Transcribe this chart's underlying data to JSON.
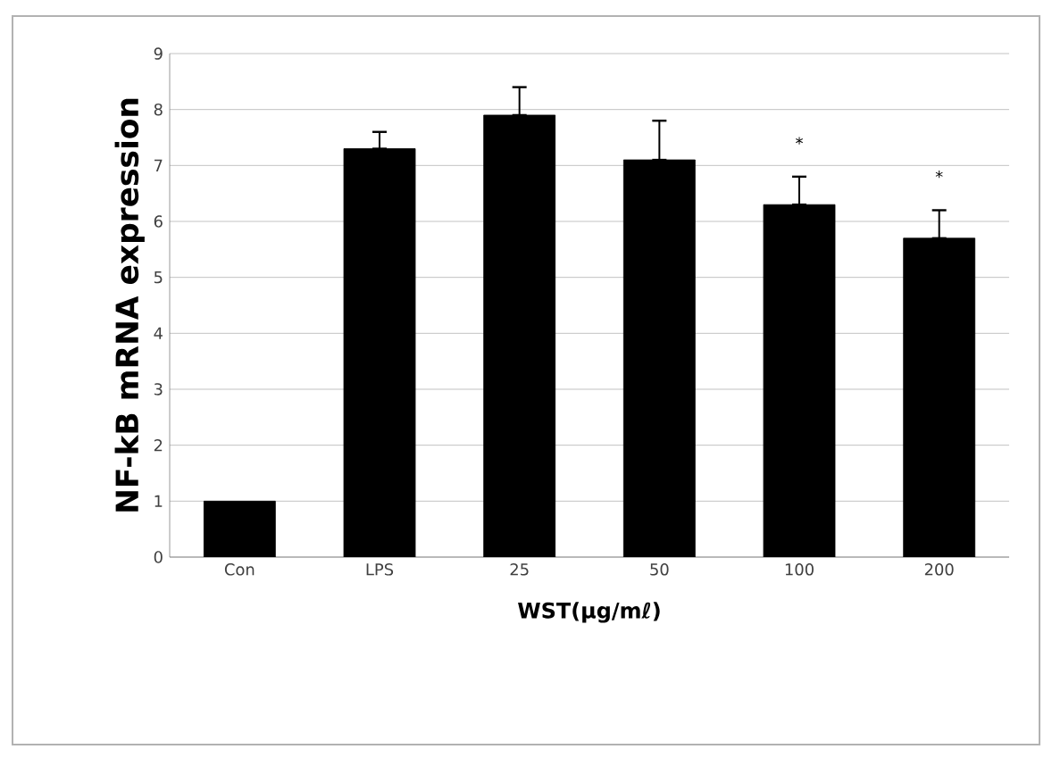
{
  "chart_data": {
    "type": "bar",
    "xlabel": "WST(μg/mℓ)",
    "ylabel": "NF-kB mRNA expression",
    "categories": [
      "Con",
      "LPS",
      "25",
      "50",
      "100",
      "200"
    ],
    "values": [
      1.0,
      7.3,
      7.9,
      7.1,
      6.3,
      5.7
    ],
    "errors": [
      null,
      [
        7.3,
        7.6
      ],
      [
        7.9,
        8.4
      ],
      [
        7.1,
        7.8
      ],
      [
        6.3,
        6.8
      ],
      [
        5.7,
        6.2
      ]
    ],
    "color": "#000000",
    "ylim": [
      0,
      9
    ],
    "yticks": [
      0,
      1,
      2,
      3,
      4,
      5,
      6,
      7,
      8,
      9
    ],
    "grid": "y",
    "annotations": [
      "*",
      "*"
    ]
  }
}
